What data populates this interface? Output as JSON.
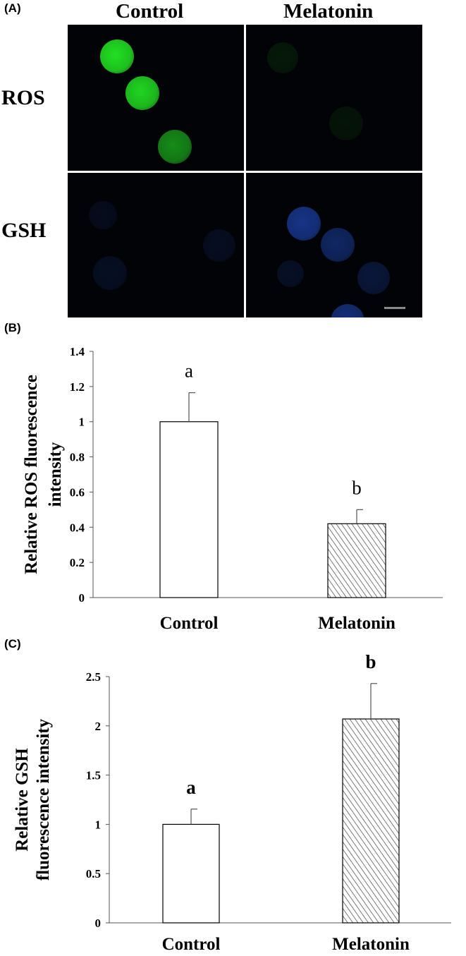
{
  "figure": {
    "panels": [
      "(A)",
      "(B)",
      "(C)"
    ],
    "columns": [
      "Control",
      "Melatonin"
    ],
    "rows": [
      "ROS",
      "GSH"
    ],
    "stains": {
      "ROS": {
        "color": "#22e022"
      },
      "GSH": {
        "color": "#1a3d9e"
      }
    },
    "scale_bar_color": "#8a8a8a"
  },
  "chart_data": [
    {
      "type": "bar",
      "panel": "(B)",
      "categories": [
        "Control",
        "Melatonin"
      ],
      "values": [
        1.0,
        0.42
      ],
      "errors": [
        0.165,
        0.08
      ],
      "significance": [
        "a",
        "b"
      ],
      "xlabel": "",
      "ylabel": "Relative ROS fluorescence intensity",
      "ylabel_lines": [
        "Relative ROS fluorescence",
        "intensity"
      ],
      "ylim": [
        0,
        1.4
      ],
      "yticks": [
        0,
        0.2,
        0.4,
        0.6,
        0.8,
        1,
        1.2,
        1.4
      ],
      "ytick_labels": [
        "0",
        "0.2",
        "0.4",
        "0.6",
        "0.8",
        "1",
        "1.2",
        "1.4"
      ],
      "grid": false,
      "fills": [
        "open",
        "hatched"
      ],
      "significance_bold": false
    },
    {
      "type": "bar",
      "panel": "(C)",
      "categories": [
        "Control",
        "Melatonin"
      ],
      "values": [
        1.0,
        2.07
      ],
      "errors": [
        0.155,
        0.36
      ],
      "significance": [
        "a",
        "b"
      ],
      "xlabel": "",
      "ylabel": "Relative GSH fluorescence intensity",
      "ylabel_lines": [
        "Relative GSH",
        "fluorescence intensity"
      ],
      "ylim": [
        0,
        2.5
      ],
      "yticks": [
        0,
        0.5,
        1,
        1.5,
        2,
        2.5
      ],
      "ytick_labels": [
        "0",
        "0.5",
        "1",
        "1.5",
        "2",
        "2.5"
      ],
      "grid": false,
      "fills": [
        "open",
        "hatched"
      ],
      "significance_bold": true
    }
  ]
}
